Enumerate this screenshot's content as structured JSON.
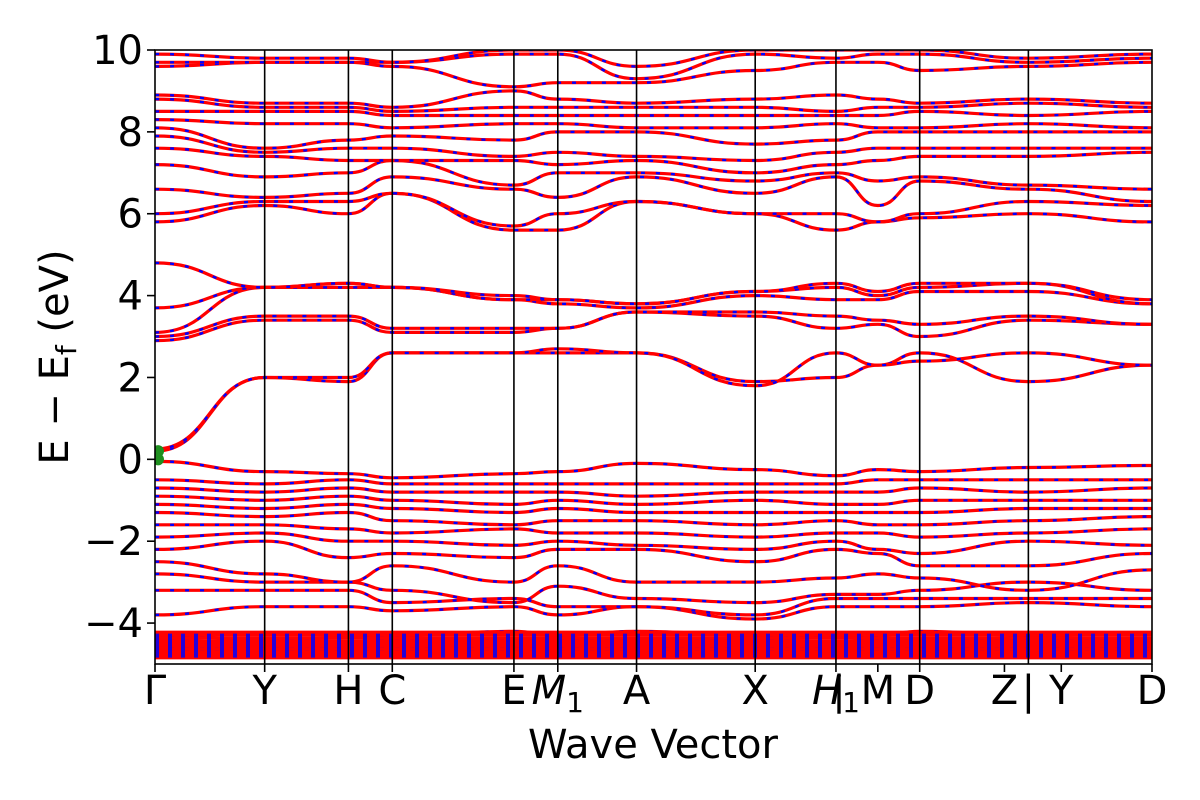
{
  "chart_data": {
    "type": "line",
    "xlabel": "Wave Vector",
    "ylabel": "E − E_f (eV)",
    "ylabel_parts": {
      "main": "E − E",
      "sub": "f",
      "unit": " (eV)"
    },
    "ylim": [
      -5,
      10
    ],
    "yticks": [
      -4,
      -2,
      0,
      2,
      4,
      6,
      8,
      10
    ],
    "ytick_labels": [
      "−4",
      "−2",
      "0",
      "2",
      "4",
      "6",
      "8",
      "10"
    ],
    "xlim": [
      0,
      100
    ],
    "kpoints": [
      {
        "label": "Γ",
        "x": 0
      },
      {
        "label": "Y",
        "x": 11
      },
      {
        "label": "H",
        "x": 19.4
      },
      {
        "label": "C",
        "x": 23.8
      },
      {
        "label": "E",
        "x": 36
      },
      {
        "label": "M",
        "sub": "1",
        "italic": true,
        "x": 40.4
      },
      {
        "label": "A",
        "x": 48.3
      },
      {
        "label": "X",
        "x": 60.2
      },
      {
        "label": "H",
        "sub": "1",
        "italic": true,
        "x": 68.3
      },
      {
        "label": "|",
        "x": 68.6
      },
      {
        "label": "M",
        "x": 72.5
      },
      {
        "label": "D",
        "x": 76.7
      },
      {
        "label": "Z",
        "x": 85.2
      },
      {
        "label": "|",
        "x": 87.6
      },
      {
        "label": "Y",
        "x": 90.9
      },
      {
        "label": "D",
        "x": 100
      }
    ],
    "segment_vlines": [
      11,
      19.4,
      23.8,
      36,
      40.4,
      48.3,
      60.2,
      68.3,
      76.7,
      87.6
    ],
    "series_colors": {
      "primary": "#ff0000",
      "overlay": "#0000ff",
      "marker": "#1f8f1f"
    },
    "bands": [
      [
        -4.8,
        -4.8,
        -4.8,
        -4.8,
        -4.8,
        -4.8,
        -4.8,
        -4.8,
        -4.8,
        -4.8,
        -4.8,
        -4.8,
        -4.8
      ],
      [
        -4.7,
        -4.7,
        -4.7,
        -4.7,
        -4.7,
        -4.7,
        -4.7,
        -4.7,
        -4.7,
        -4.7,
        -4.7,
        -4.7,
        -4.7
      ],
      [
        -4.6,
        -4.6,
        -4.6,
        -4.6,
        -4.6,
        -4.6,
        -4.6,
        -4.6,
        -4.6,
        -4.6,
        -4.6,
        -4.6,
        -4.6
      ],
      [
        -4.5,
        -4.5,
        -4.5,
        -4.5,
        -4.5,
        -4.5,
        -4.5,
        -4.5,
        -4.5,
        -4.5,
        -4.5,
        -4.5,
        -4.5
      ],
      [
        -4.4,
        -4.5,
        -4.45,
        -4.4,
        -4.4,
        -4.4,
        -4.4,
        -4.4,
        -4.45,
        -4.4,
        -4.4,
        -4.4,
        -4.4
      ],
      [
        -4.3,
        -4.4,
        -4.35,
        -4.3,
        -4.2,
        -4.3,
        -4.2,
        -4.3,
        -4.35,
        -4.3,
        -4.2,
        -4.3,
        -4.25
      ],
      [
        -3.8,
        -3.6,
        -3.6,
        -3.7,
        -3.6,
        -3.8,
        -3.6,
        -3.9,
        -3.6,
        -3.6,
        -3.6,
        -3.5,
        -3.6
      ],
      [
        -3.2,
        -3.2,
        -3.2,
        -3.5,
        -3.4,
        -3.6,
        -3.6,
        -3.8,
        -3.4,
        -3.4,
        -3.4,
        -3.4,
        -3.4
      ],
      [
        -2.8,
        -3.0,
        -3.0,
        -3.2,
        -3.5,
        -3.1,
        -3.4,
        -3.5,
        -3.3,
        -3.3,
        -3.2,
        -3.0,
        -3.2
      ],
      [
        -2.5,
        -2.8,
        -3.0,
        -2.6,
        -3.0,
        -2.6,
        -3.0,
        -3.0,
        -2.9,
        -2.8,
        -2.9,
        -3.2,
        -2.7
      ],
      [
        -2.2,
        -2.0,
        -2.4,
        -2.3,
        -2.4,
        -2.2,
        -2.2,
        -2.5,
        -2.2,
        -2.3,
        -2.6,
        -2.6,
        -2.3
      ],
      [
        -1.9,
        -1.8,
        -2.0,
        -2.0,
        -2.1,
        -2.0,
        -2.1,
        -2.2,
        -2.0,
        -2.2,
        -2.3,
        -2.0,
        -2.1
      ],
      [
        -1.6,
        -1.6,
        -1.7,
        -1.8,
        -1.7,
        -1.8,
        -1.8,
        -1.9,
        -1.8,
        -1.8,
        -1.9,
        -1.8,
        -1.7
      ],
      [
        -1.3,
        -1.4,
        -1.3,
        -1.5,
        -1.6,
        -1.5,
        -1.5,
        -1.6,
        -1.5,
        -1.6,
        -1.6,
        -1.5,
        -1.4
      ],
      [
        -1.1,
        -1.2,
        -1.1,
        -1.2,
        -1.3,
        -1.2,
        -1.3,
        -1.3,
        -1.3,
        -1.3,
        -1.3,
        -1.2,
        -1.2
      ],
      [
        -0.9,
        -1.0,
        -0.9,
        -1.0,
        -1.1,
        -1.0,
        -1.1,
        -1.0,
        -1.1,
        -1.1,
        -1.0,
        -1.0,
        -1.0
      ],
      [
        -0.7,
        -0.8,
        -0.7,
        -0.8,
        -0.8,
        -0.8,
        -0.9,
        -0.8,
        -0.8,
        -0.8,
        -0.7,
        -0.8,
        -0.7
      ],
      [
        -0.5,
        -0.6,
        -0.5,
        -0.6,
        -0.6,
        -0.6,
        -0.6,
        -0.6,
        -0.6,
        -0.5,
        -0.5,
        -0.5,
        -0.5
      ],
      [
        -0.05,
        -0.3,
        -0.35,
        -0.45,
        -0.35,
        -0.3,
        -0.1,
        -0.25,
        -0.4,
        -0.25,
        -0.3,
        -0.2,
        -0.15
      ],
      [
        0.2,
        2.0,
        1.9,
        2.6,
        2.6,
        2.6,
        2.6,
        1.9,
        2.0,
        2.3,
        2.6,
        1.9,
        2.3
      ],
      [
        0.25,
        2.0,
        2.0,
        2.6,
        2.6,
        2.7,
        2.6,
        1.8,
        2.6,
        2.3,
        2.4,
        2.6,
        2.3
      ],
      [
        2.9,
        3.4,
        3.4,
        3.1,
        3.1,
        3.2,
        3.6,
        3.5,
        3.2,
        3.3,
        3.0,
        3.4,
        3.3
      ],
      [
        3.0,
        3.5,
        3.5,
        3.2,
        3.2,
        3.2,
        3.6,
        3.6,
        3.5,
        3.4,
        3.3,
        3.5,
        3.3
      ],
      [
        3.1,
        4.2,
        4.2,
        4.2,
        3.9,
        3.8,
        3.7,
        4.0,
        3.9,
        3.9,
        4.1,
        4.1,
        3.8
      ],
      [
        3.7,
        4.2,
        4.3,
        4.2,
        3.9,
        3.9,
        3.8,
        4.1,
        4.2,
        4.0,
        4.2,
        4.3,
        3.8
      ],
      [
        4.8,
        4.2,
        4.3,
        4.2,
        4.0,
        3.9,
        3.8,
        4.1,
        4.3,
        4.1,
        4.3,
        4.3,
        3.9
      ],
      [
        5.8,
        6.2,
        6.0,
        6.5,
        5.6,
        5.6,
        6.3,
        6.0,
        5.6,
        5.8,
        5.9,
        6.0,
        5.8
      ],
      [
        6.0,
        6.3,
        6.3,
        6.5,
        5.7,
        6.0,
        6.3,
        6.0,
        6.0,
        5.8,
        6.0,
        6.3,
        6.2
      ],
      [
        6.6,
        6.4,
        6.5,
        6.9,
        6.6,
        6.4,
        6.9,
        6.5,
        6.9,
        6.2,
        6.8,
        6.6,
        6.3
      ],
      [
        7.2,
        6.9,
        7.0,
        7.3,
        6.7,
        7.0,
        7.0,
        6.8,
        7.0,
        6.8,
        6.9,
        6.7,
        6.6
      ],
      [
        7.6,
        7.4,
        7.3,
        7.3,
        7.3,
        7.2,
        7.3,
        7.0,
        7.2,
        7.3,
        7.4,
        7.4,
        7.5
      ],
      [
        7.9,
        7.5,
        7.6,
        7.6,
        7.4,
        7.5,
        7.4,
        7.3,
        7.5,
        7.6,
        7.6,
        7.6,
        7.6
      ],
      [
        8.1,
        7.6,
        7.8,
        7.9,
        7.8,
        8.0,
        8.0,
        7.7,
        7.8,
        8.0,
        8.0,
        8.0,
        8.0
      ],
      [
        8.3,
        8.2,
        8.2,
        8.1,
        8.2,
        8.2,
        8.1,
        8.1,
        8.2,
        8.1,
        8.1,
        8.2,
        8.1
      ],
      [
        8.5,
        8.5,
        8.5,
        8.4,
        8.4,
        8.4,
        8.4,
        8.4,
        8.4,
        8.4,
        8.5,
        8.4,
        8.5
      ],
      [
        8.8,
        8.6,
        8.6,
        8.5,
        8.6,
        8.6,
        8.6,
        8.6,
        8.5,
        8.6,
        8.6,
        8.7,
        8.6
      ],
      [
        8.9,
        8.7,
        8.7,
        8.6,
        9.0,
        8.8,
        8.7,
        8.8,
        8.9,
        8.8,
        8.7,
        8.8,
        8.7
      ],
      [
        9.6,
        9.7,
        9.7,
        9.6,
        9.1,
        9.2,
        9.2,
        9.5,
        9.7,
        9.7,
        9.5,
        9.6,
        9.7
      ],
      [
        9.7,
        9.7,
        9.7,
        9.7,
        9.9,
        9.9,
        9.3,
        9.9,
        9.8,
        9.9,
        9.9,
        9.7,
        9.8
      ],
      [
        9.9,
        9.8,
        9.8,
        9.7,
        10.0,
        10.0,
        9.6,
        10.0,
        10.0,
        10.0,
        10.0,
        9.8,
        9.9
      ]
    ]
  }
}
